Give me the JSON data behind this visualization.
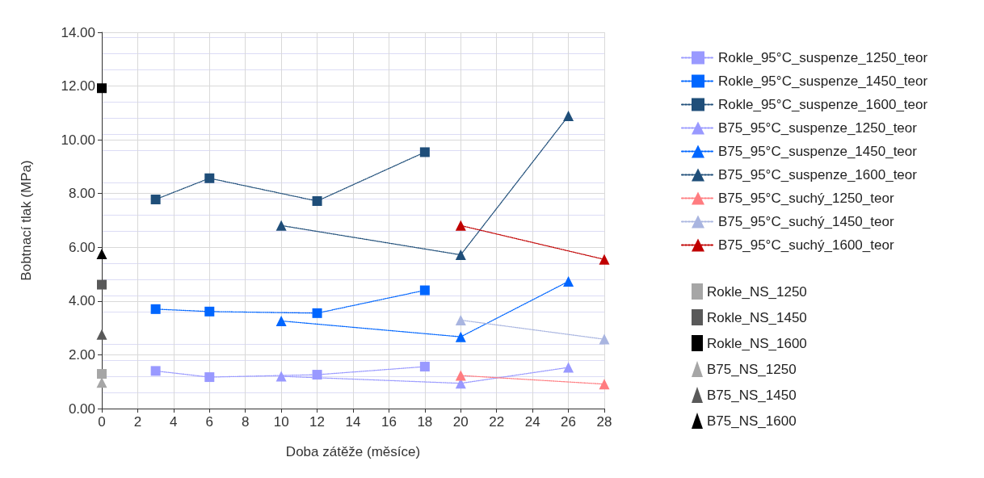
{
  "chart_data": {
    "type": "line",
    "xlabel": "Doba zátěže (měsíce)",
    "ylabel": "Bobtnací tlak (MPa)",
    "xlim": [
      0,
      28
    ],
    "xticks": [
      0,
      2,
      4,
      6,
      8,
      10,
      12,
      14,
      16,
      18,
      20,
      22,
      24,
      26,
      28
    ],
    "ylim": [
      0,
      14
    ],
    "yticks": [
      {
        "value": 0,
        "label": "0.00"
      },
      {
        "value": 2,
        "label": "2.00"
      },
      {
        "value": 4,
        "label": "4.00"
      },
      {
        "value": 6,
        "label": "6.00"
      },
      {
        "value": 8,
        "label": "8.00"
      },
      {
        "value": 10,
        "label": "10.00"
      },
      {
        "value": 12,
        "label": "12.00"
      },
      {
        "value": 14,
        "label": "14.00"
      }
    ],
    "grid": true,
    "legend": "right",
    "line_style": "dotted",
    "series": [
      {
        "name": "Rokle_95°C_suspenze_1250_teor",
        "color": "#9999ff",
        "marker": "square",
        "x": [
          3,
          6,
          12,
          18
        ],
        "values": [
          1.4,
          1.17,
          1.26,
          1.56
        ]
      },
      {
        "name": "Rokle_95°C_suspenze_1450_teor",
        "color": "#0066ff",
        "marker": "square",
        "x": [
          3,
          6,
          12,
          18
        ],
        "values": [
          3.7,
          3.61,
          3.55,
          4.4
        ]
      },
      {
        "name": "Rokle_95°C_suspenze_1600_teor",
        "color": "#1f4e79",
        "marker": "square",
        "x": [
          3,
          6,
          12,
          18
        ],
        "values": [
          7.78,
          8.57,
          7.72,
          9.54
        ]
      },
      {
        "name": "B75_95°C_suspenze_1250_teor",
        "color": "#9999ff",
        "marker": "triangle",
        "x": [
          10,
          20,
          26
        ],
        "values": [
          1.2,
          0.94,
          1.53
        ]
      },
      {
        "name": "B75_95°C_suspenze_1450_teor",
        "color": "#0066ff",
        "marker": "triangle",
        "x": [
          10,
          20,
          26
        ],
        "values": [
          3.26,
          2.67,
          4.73
        ]
      },
      {
        "name": "B75_95°C_suspenze_1600_teor",
        "color": "#1f4e79",
        "marker": "triangle",
        "x": [
          10,
          20,
          26
        ],
        "values": [
          6.81,
          5.72,
          10.89
        ]
      },
      {
        "name": "B75_95°C_suchý_1250_teor",
        "color": "#ff7c80",
        "marker": "triangle",
        "x": [
          20,
          28
        ],
        "values": [
          1.23,
          0.91
        ]
      },
      {
        "name": "B75_95°C_suchý_1450_teor",
        "color": "#a9b5e0",
        "marker": "triangle",
        "x": [
          20,
          28
        ],
        "values": [
          3.29,
          2.58
        ]
      },
      {
        "name": "B75_95°C_suchý_1600_teor",
        "color": "#c00000",
        "marker": "triangle",
        "x": [
          20,
          28
        ],
        "values": [
          6.81,
          5.55
        ]
      },
      {
        "name": "Rokle_NS_1250",
        "type": "scatter",
        "color": "#a6a6a6",
        "marker": "square",
        "x": [
          0
        ],
        "values": [
          1.29
        ]
      },
      {
        "name": "Rokle_NS_1450",
        "type": "scatter",
        "color": "#595959",
        "marker": "square",
        "x": [
          0
        ],
        "values": [
          4.61
        ]
      },
      {
        "name": "Rokle_NS_1600",
        "type": "scatter",
        "color": "#000000",
        "marker": "square",
        "x": [
          0
        ],
        "values": [
          11.92
        ]
      },
      {
        "name": "B75_NS_1250",
        "type": "scatter",
        "color": "#a6a6a6",
        "marker": "triangle",
        "x": [
          0
        ],
        "values": [
          0.97
        ]
      },
      {
        "name": "B75_NS_1450",
        "type": "scatter",
        "color": "#595959",
        "marker": "triangle",
        "x": [
          0
        ],
        "values": [
          2.76
        ]
      },
      {
        "name": "B75_NS_1600",
        "type": "scatter",
        "color": "#000000",
        "marker": "triangle",
        "x": [
          0
        ],
        "values": [
          5.75
        ]
      }
    ]
  }
}
